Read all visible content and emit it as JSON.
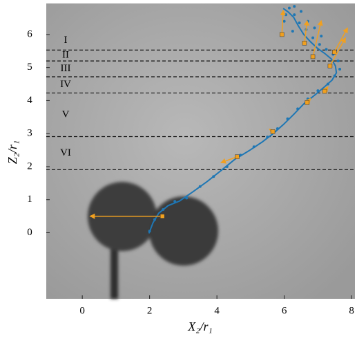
{
  "chart_data": {
    "type": "line",
    "x_label": "X₂/r₁",
    "y_label": "Z₂/r₁",
    "xlim": [
      -1.07,
      8.1
    ],
    "ylim": [
      -2.0,
      6.94
    ],
    "xticks": [
      0,
      2,
      4,
      6,
      8
    ],
    "yticks": [
      0,
      1,
      2,
      3,
      4,
      5,
      6
    ],
    "hlines": [
      5.53,
      5.2,
      4.72,
      4.23,
      2.91,
      1.91
    ],
    "regions": [
      "I",
      "II",
      "III",
      "IV",
      "V",
      "VI"
    ],
    "trajectory": {
      "color": "#1f77b4",
      "x": [
        1.98,
        2.1,
        2.27,
        2.55,
        2.89,
        3.3,
        3.71,
        4.12,
        4.53,
        4.95,
        5.35,
        5.67,
        5.97,
        6.28,
        6.58,
        6.9,
        7.2,
        7.42,
        7.55,
        7.52,
        7.4,
        7.2,
        6.99,
        6.78,
        6.58,
        6.42,
        6.28,
        6.12,
        5.97
      ],
      "y": [
        -0.02,
        0.3,
        0.59,
        0.82,
        0.96,
        1.25,
        1.55,
        1.88,
        2.22,
        2.48,
        2.75,
        3.0,
        3.27,
        3.58,
        3.9,
        4.16,
        4.42,
        4.62,
        4.84,
        5.05,
        5.26,
        5.43,
        5.58,
        5.78,
        6.0,
        6.26,
        6.52,
        6.68,
        6.79
      ]
    },
    "points": {
      "color": "#1f77b4",
      "x": [
        2.0,
        2.15,
        2.4,
        2.75,
        3.1,
        3.5,
        3.9,
        4.3,
        4.7,
        5.1,
        5.5,
        5.8,
        6.1,
        6.4,
        6.7,
        7.0,
        7.3,
        7.5,
        7.65,
        7.6,
        7.45,
        7.25,
        7.05,
        6.85,
        6.65,
        6.45,
        6.3,
        6.15,
        6.05,
        6.3,
        6.5,
        6.7,
        6.9,
        7.1,
        6.25,
        6.0
      ],
      "y": [
        0.05,
        0.4,
        0.7,
        0.95,
        1.05,
        1.4,
        1.7,
        2.0,
        2.35,
        2.6,
        2.9,
        3.15,
        3.45,
        3.75,
        4.05,
        4.3,
        4.5,
        4.75,
        4.95,
        5.2,
        5.4,
        5.55,
        5.7,
        5.9,
        6.15,
        6.35,
        6.6,
        6.8,
        6.6,
        6.85,
        6.7,
        6.4,
        6.2,
        5.95,
        6.1,
        6.4
      ]
    },
    "arrows": {
      "color": "#f0a020",
      "x": [
        2.38,
        4.6,
        5.66,
        6.68,
        7.2,
        6.85,
        6.6,
        7.49,
        7.36,
        5.93
      ],
      "y": [
        0.5,
        2.3,
        3.06,
        3.94,
        4.28,
        5.33,
        5.74,
        5.47,
        5.05,
        6.0
      ],
      "x_end": [
        0.23,
        4.12,
        5.56,
        6.78,
        7.3,
        7.1,
        6.68,
        7.88,
        7.82,
        5.97
      ],
      "y_end": [
        0.5,
        2.12,
        3.14,
        4.06,
        4.42,
        6.42,
        6.42,
        6.2,
        5.9,
        6.73
      ]
    }
  }
}
